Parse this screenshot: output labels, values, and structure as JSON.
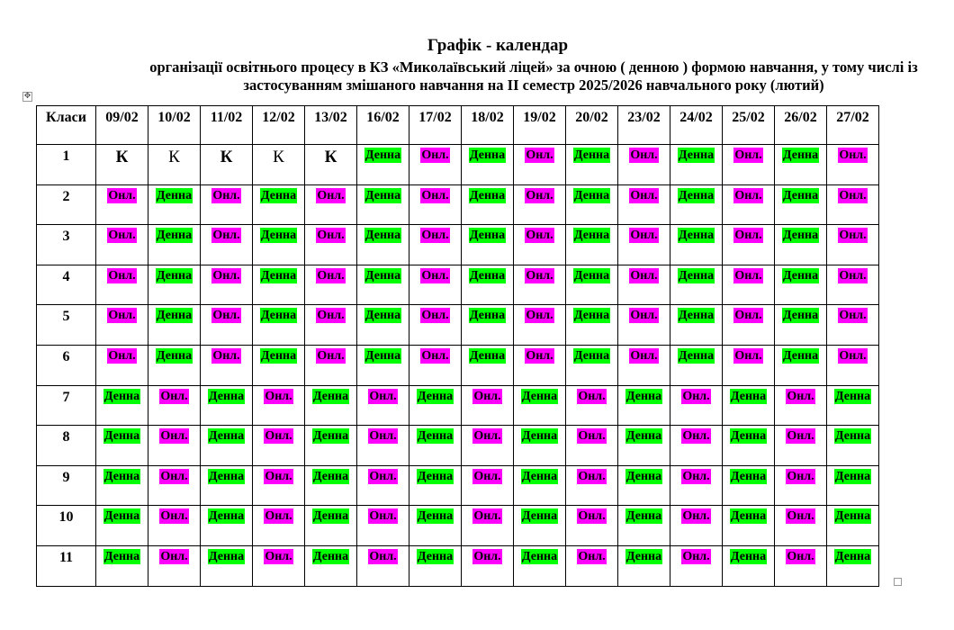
{
  "title": "Графік - календар",
  "subtitle_line1": "організації освітнього процесу в КЗ «Миколаївський ліцей» за очною ( денною ) формою навчання, у тому числі із",
  "subtitle_line2": "застосуванням змішаного навчання  на II семестр 2025/2026 навчального року (лютий)",
  "table": {
    "corner_header": "Класи",
    "dates": [
      "09/02",
      "10/02",
      "11/02",
      "12/02",
      "13/02",
      "16/02",
      "17/02",
      "18/02",
      "19/02",
      "20/02",
      "23/02",
      "24/02",
      "25/02",
      "26/02",
      "27/02"
    ],
    "rows": [
      {
        "class": "1",
        "cells": [
          "К",
          "К",
          "К",
          "К",
          "К",
          "Денна",
          "Онл.",
          "Денна",
          "Онл.",
          "Денна",
          "Онл.",
          "Денна",
          "Онл.",
          "Денна",
          "Онл."
        ]
      },
      {
        "class": "2",
        "cells": [
          "Онл.",
          "Денна",
          "Онл.",
          "Денна",
          "Онл.",
          "Денна",
          "Онл.",
          "Денна",
          "Онл.",
          "Денна",
          "Онл.",
          "Денна",
          "Онл.",
          "Денна",
          "Онл."
        ]
      },
      {
        "class": "3",
        "cells": [
          "Онл.",
          "Денна",
          "Онл.",
          "Денна",
          "Онл.",
          "Денна",
          "Онл.",
          "Денна",
          "Онл.",
          "Денна",
          "Онл.",
          "Денна",
          "Онл.",
          "Денна",
          "Онл."
        ]
      },
      {
        "class": "4",
        "cells": [
          "Онл.",
          "Денна",
          "Онл.",
          "Денна",
          "Онл.",
          "Денна",
          "Онл.",
          "Денна",
          "Онл.",
          "Денна",
          "Онл.",
          "Денна",
          "Онл.",
          "Денна",
          "Онл."
        ]
      },
      {
        "class": "5",
        "cells": [
          "Онл.",
          "Денна",
          "Онл.",
          "Денна",
          "Онл.",
          "Денна",
          "Онл.",
          "Денна",
          "Онл.",
          "Денна",
          "Онл.",
          "Денна",
          "Онл.",
          "Денна",
          "Онл."
        ]
      },
      {
        "class": "6",
        "cells": [
          "Онл.",
          "Денна",
          "Онл.",
          "Денна",
          "Онл.",
          "Денна",
          "Онл.",
          "Денна",
          "Онл.",
          "Денна",
          "Онл.",
          "Денна",
          "Онл.",
          "Денна",
          "Онл."
        ]
      },
      {
        "class": "7",
        "cells": [
          "Денна",
          "Онл.",
          "Денна",
          "Онл.",
          "Денна",
          "Онл.",
          "Денна",
          "Онл.",
          "Денна",
          "Онл.",
          "Денна",
          "Онл.",
          "Денна",
          "Онл.",
          "Денна"
        ]
      },
      {
        "class": "8",
        "cells": [
          "Денна",
          "Онл.",
          "Денна",
          "Онл.",
          "Денна",
          "Онл.",
          "Денна",
          "Онл.",
          "Денна",
          "Онл.",
          "Денна",
          "Онл.",
          "Денна",
          "Онл.",
          "Денна"
        ]
      },
      {
        "class": "9",
        "cells": [
          "Денна",
          "Онл.",
          "Денна",
          "Онл.",
          "Денна",
          "Онл.",
          "Денна",
          "Онл.",
          "Денна",
          "Онл.",
          "Денна",
          "Онл.",
          "Денна",
          "Онл.",
          "Денна"
        ]
      },
      {
        "class": "10",
        "cells": [
          "Денна",
          "Онл.",
          "Денна",
          "Онл.",
          "Денна",
          "Онл.",
          "Денна",
          "Онл.",
          "Денна",
          "Онл.",
          "Денна",
          "Онл.",
          "Денна",
          "Онл.",
          "Денна"
        ]
      },
      {
        "class": "11",
        "cells": [
          "Денна",
          "Онл.",
          "Денна",
          "Онл.",
          "Денна",
          "Онл.",
          "Денна",
          "Онл.",
          "Денна",
          "Онл.",
          "Денна",
          "Онл.",
          "Денна",
          "Онл.",
          "Денна"
        ]
      }
    ]
  },
  "colors": {
    "in_person_highlight": "#00ff00",
    "online_highlight": "#ff00ff"
  },
  "icons": {
    "table_move_handle": "move-arrows-icon",
    "table_resize_handle": "resize-square-icon"
  }
}
